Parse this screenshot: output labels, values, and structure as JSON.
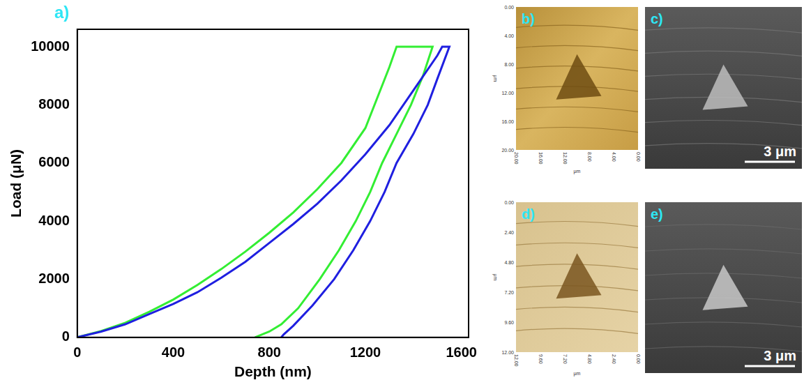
{
  "chart_data": {
    "type": "line",
    "panel_label": "a)",
    "x_label": "Depth (nm)",
    "y_label": "Load (μN)",
    "xlim": [
      0,
      1630
    ],
    "xticks": [
      0,
      400,
      800,
      1200,
      1600
    ],
    "ylim": [
      0,
      10600
    ],
    "yticks": [
      0,
      2000,
      4000,
      6000,
      8000,
      10000
    ],
    "grid": false,
    "series": [
      {
        "color": "#1f1fe0",
        "marker": "none",
        "line_style": "solid",
        "x": [
          0,
          100,
          200,
          300,
          400,
          500,
          600,
          700,
          800,
          900,
          1000,
          1100,
          1200,
          1300,
          1400,
          1500,
          1520,
          1550,
          1500,
          1460,
          1400,
          1330,
          1280,
          1220,
          1150,
          1070,
          980,
          900,
          860,
          850
        ],
        "values": [
          0,
          200,
          450,
          800,
          1150,
          1550,
          2050,
          2600,
          3250,
          3900,
          4600,
          5400,
          6300,
          7300,
          8500,
          9700,
          10000,
          10000,
          8900,
          8000,
          7000,
          6000,
          5000,
          4000,
          3000,
          2000,
          1100,
          400,
          100,
          0
        ]
      },
      {
        "color": "#33ee33",
        "marker": "none",
        "line_style": "solid",
        "x": [
          0,
          100,
          200,
          300,
          400,
          500,
          600,
          700,
          800,
          900,
          1000,
          1100,
          1200,
          1300,
          1330,
          1480,
          1440,
          1390,
          1330,
          1270,
          1220,
          1160,
          1090,
          1010,
          920,
          850,
          800,
          740
        ],
        "values": [
          0,
          220,
          500,
          880,
          1300,
          1800,
          2350,
          2950,
          3600,
          4300,
          5100,
          6000,
          7200,
          9300,
          10000,
          10000,
          9000,
          8000,
          7000,
          6000,
          5000,
          4000,
          3000,
          2000,
          1000,
          450,
          200,
          0
        ]
      }
    ]
  },
  "panels": [
    {
      "label": "b)",
      "x_ticks": [
        "20.00",
        "16.00",
        "12.00",
        "8.00",
        "4.00",
        "0.00"
      ],
      "y_ticks": [
        "0.00",
        "4.00",
        "8.00",
        "12.00",
        "16.00",
        "20.00"
      ],
      "unit": "μm"
    },
    {
      "label": "c)",
      "scale_bar": "3 μm"
    },
    {
      "label": "d)",
      "x_ticks": [
        "12.00",
        "9.60",
        "7.20",
        "4.80",
        "2.40",
        "0.00"
      ],
      "y_ticks": [
        "0.00",
        "2.40",
        "4.80",
        "7.20",
        "9.60",
        "12.00"
      ],
      "unit": "μm"
    },
    {
      "label": "e)",
      "scale_bar": "3 μm"
    }
  ]
}
